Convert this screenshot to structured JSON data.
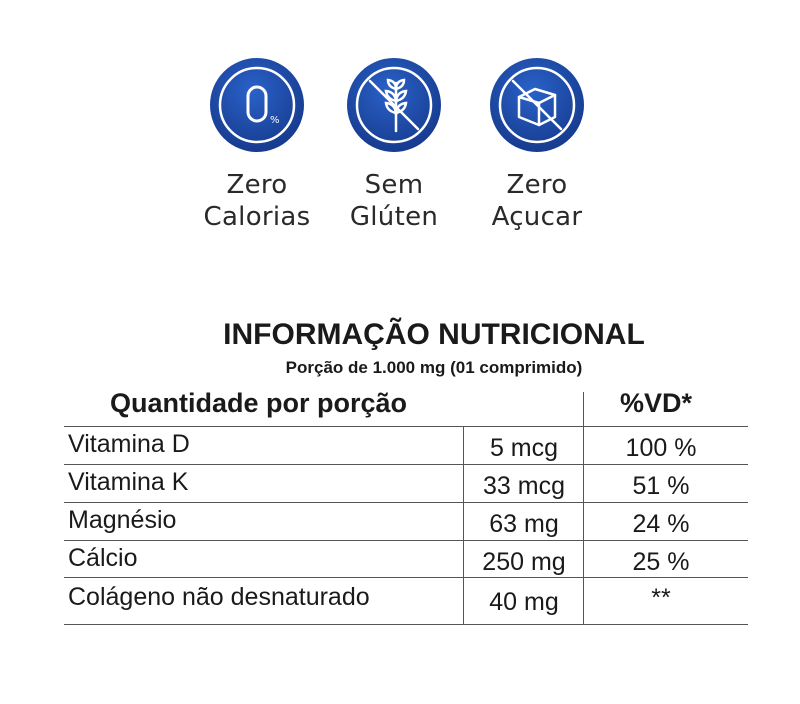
{
  "badges": [
    {
      "icon": "zero-percent-icon",
      "line1": "Zero",
      "line2": "Calorias"
    },
    {
      "icon": "no-wheat-icon",
      "line1": "Sem",
      "line2": "Glúten"
    },
    {
      "icon": "no-sugar-cube-icon",
      "line1": "Zero",
      "line2": "Açucar"
    }
  ],
  "colors": {
    "badge_blue": "#1e4fb4",
    "badge_dark": "#15388a",
    "text": "#1a1a1a"
  },
  "table": {
    "title": "INFORMAÇÃO NUTRICIONAL",
    "subtitle": "Porção de 1.000 mg (01 comprimido)",
    "header_quantity": "Quantidade por porção",
    "header_vd": "%VD*",
    "rows": [
      {
        "name": "Vitamina D",
        "amount": "5 mcg",
        "vd": "100 %"
      },
      {
        "name": "Vitamina K",
        "amount": "33 mcg",
        "vd": "51 %"
      },
      {
        "name": "Magnésio",
        "amount": "63 mg",
        "vd": "24 %"
      },
      {
        "name": "Cálcio",
        "amount": "250 mg",
        "vd": "25 %"
      },
      {
        "name": "Colágeno não desnaturado",
        "amount": "40 mg",
        "vd": "**"
      }
    ]
  }
}
